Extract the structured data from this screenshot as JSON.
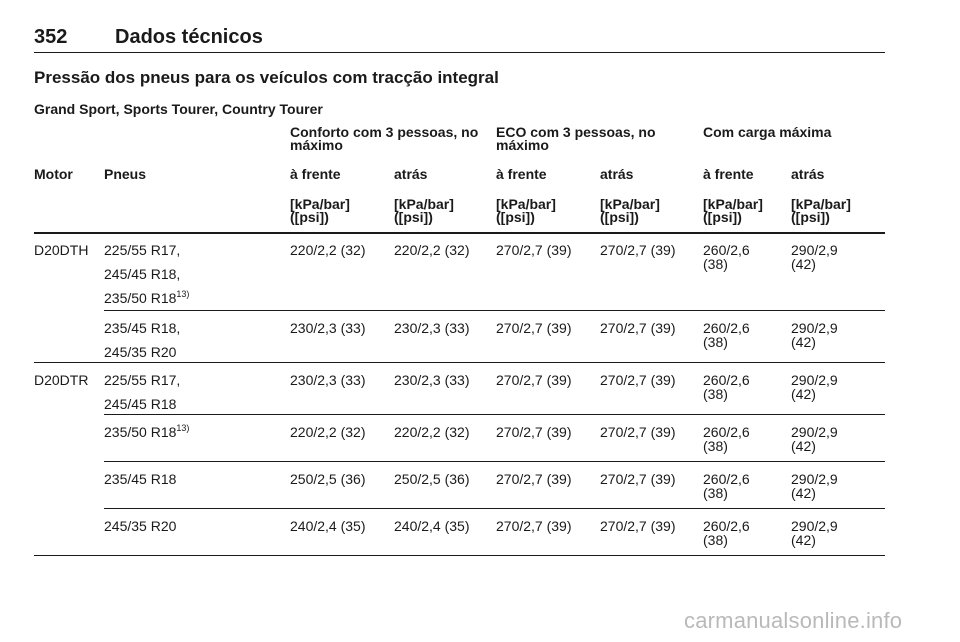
{
  "header": {
    "page_number": "352",
    "title": "Dados técnicos"
  },
  "section_title": "Pressão dos pneus para os veículos com tracção integral",
  "subsection_title": "Grand Sport, Sports Tourer, Country Tourer",
  "table": {
    "groups": [
      "Conforto com 3 pessoas, no máximo",
      "ECO com 3 pessoas, no máximo",
      "Com carga máxima"
    ],
    "col_motor": "Motor",
    "col_tyres": "Pneus",
    "col_front": "à frente",
    "col_rear": "atrás",
    "unit_line1": "[kPa/bar]",
    "unit_line2": "([psi])",
    "rows": [
      {
        "motor": "D20DTH",
        "tyres": [
          "225/55 R17,",
          "245/45 R18,",
          "235/50 R18"
        ],
        "footnote": "13)",
        "values": [
          "220/2,2 (32)",
          "220/2,2 (32)",
          "270/2,7 (39)",
          "270/2,7 (39)",
          "260/2,6",
          "(38)",
          "290/2,9",
          "(42)"
        ]
      },
      {
        "motor": "",
        "tyres": [
          "235/45 R18,",
          "245/35 R20"
        ],
        "values": [
          "230/2,3 (33)",
          "230/2,3 (33)",
          "270/2,7 (39)",
          "270/2,7 (39)",
          "260/2,6",
          "(38)",
          "290/2,9",
          "(42)"
        ]
      },
      {
        "motor": "D20DTR",
        "tyres": [
          "225/55 R17,",
          "245/45 R18"
        ],
        "values": [
          "230/2,3 (33)",
          "230/2,3 (33)",
          "270/2,7 (39)",
          "270/2,7 (39)",
          "260/2,6",
          "(38)",
          "290/2,9",
          "(42)"
        ]
      },
      {
        "motor": "",
        "tyres": [
          "235/50 R18"
        ],
        "footnote": "13)",
        "values": [
          "220/2,2 (32)",
          "220/2,2 (32)",
          "270/2,7 (39)",
          "270/2,7 (39)",
          "260/2,6",
          "(38)",
          "290/2,9",
          "(42)"
        ]
      },
      {
        "motor": "",
        "tyres": [
          "235/45 R18"
        ],
        "values": [
          "250/2,5 (36)",
          "250/2,5 (36)",
          "270/2,7 (39)",
          "270/2,7 (39)",
          "260/2,6",
          "(38)",
          "290/2,9",
          "(42)"
        ]
      },
      {
        "motor": "",
        "tyres": [
          "245/35 R20"
        ],
        "values": [
          "240/2,4 (35)",
          "240/2,4 (35)",
          "270/2,7 (39)",
          "270/2,7 (39)",
          "260/2,6",
          "(38)",
          "290/2,9",
          "(42)"
        ]
      }
    ]
  },
  "watermark": "carmanualsonline.info"
}
